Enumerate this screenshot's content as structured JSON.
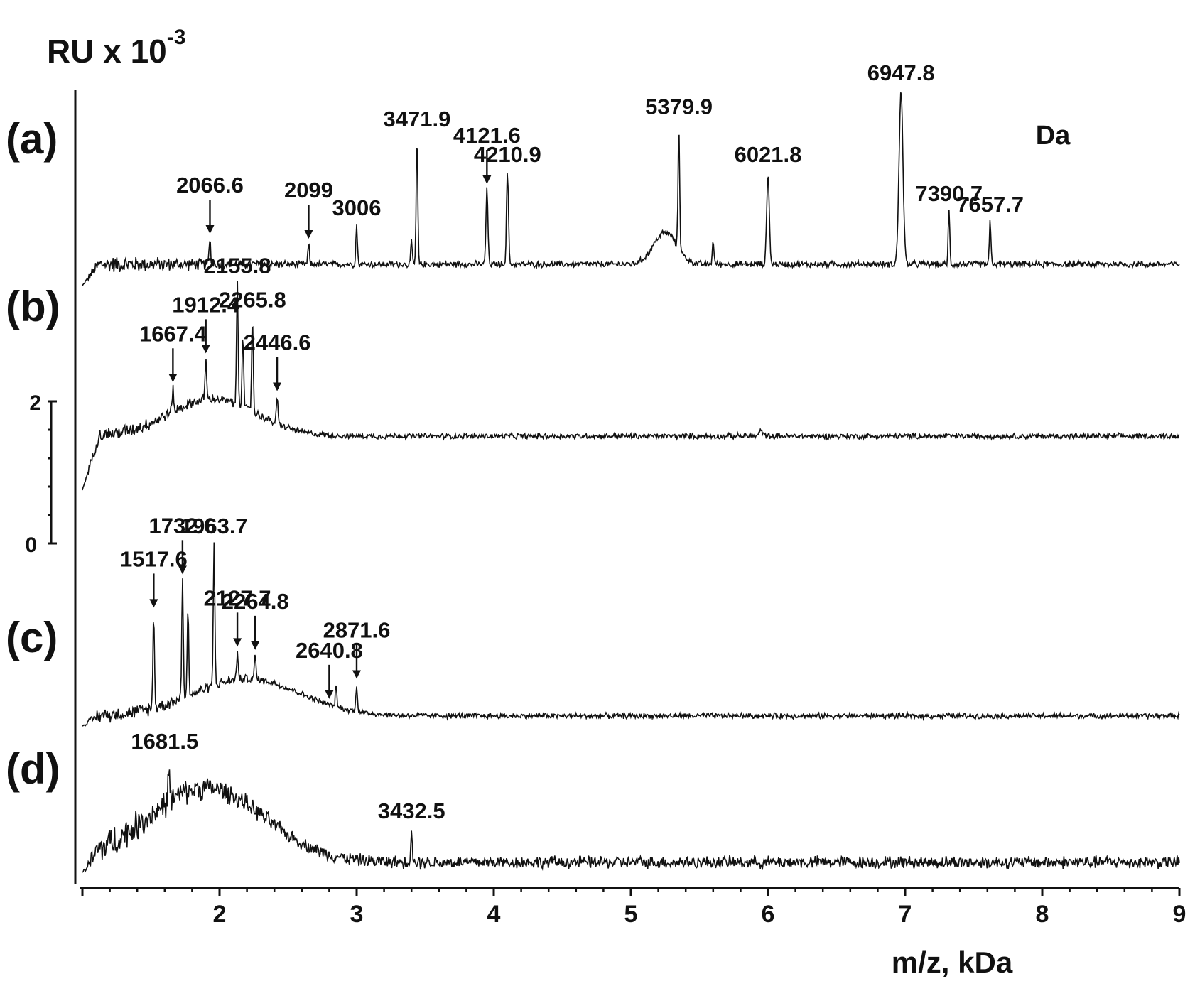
{
  "chart_data": {
    "type": "line",
    "y_unit_label": {
      "base": "RU x 10",
      "exponent": "-3"
    },
    "xlabel": "m/z, kDa",
    "xlim": [
      1.0,
      9.0
    ],
    "x_ticks": [
      "2",
      "3",
      "4",
      "5",
      "6",
      "7",
      "8",
      "9"
    ],
    "y_scale_ticks": [
      "0",
      "2"
    ],
    "unit_note": "Da",
    "series": [
      {
        "name": "(a)",
        "baseline": 0.3,
        "noise": 0.22,
        "humps": [
          {
            "x": 5.25,
            "h": 0.45,
            "w": 0.12
          }
        ],
        "peaks": [
          {
            "x": 1.93,
            "h": 0.35,
            "w": 0.008
          },
          {
            "x": 2.65,
            "h": 0.28,
            "w": 0.008
          },
          {
            "x": 3.0,
            "h": 0.55,
            "w": 0.008
          },
          {
            "x": 3.4,
            "h": 0.3,
            "w": 0.008
          },
          {
            "x": 3.44,
            "h": 1.8,
            "w": 0.008
          },
          {
            "x": 3.95,
            "h": 1.05,
            "w": 0.01
          },
          {
            "x": 4.1,
            "h": 1.3,
            "w": 0.01
          },
          {
            "x": 5.35,
            "h": 1.75,
            "w": 0.008
          },
          {
            "x": 5.6,
            "h": 0.35,
            "w": 0.008
          },
          {
            "x": 6.0,
            "h": 1.3,
            "w": 0.013
          },
          {
            "x": 6.97,
            "h": 2.45,
            "w": 0.02
          },
          {
            "x": 7.32,
            "h": 0.75,
            "w": 0.008
          },
          {
            "x": 7.62,
            "h": 0.6,
            "w": 0.008
          }
        ],
        "annotations": [
          {
            "text": "2066.6",
            "x": 1.93,
            "arrow": true
          },
          {
            "text": "2099",
            "x": 2.65,
            "arrow": true
          },
          {
            "text": "3006",
            "x": 3.0,
            "arrow": false
          },
          {
            "text": "3471.9",
            "x": 3.44,
            "arrow": false
          },
          {
            "text": "4121.6",
            "x": 3.95,
            "arrow": true
          },
          {
            "text": "4210.9",
            "x": 4.1,
            "arrow": false
          },
          {
            "text": "5379.9",
            "x": 5.35,
            "arrow": false
          },
          {
            "text": "6021.8",
            "x": 6.0,
            "arrow": false
          },
          {
            "text": "6947.8",
            "x": 6.97,
            "arrow": false
          },
          {
            "text": "7390.7",
            "x": 7.32,
            "arrow": false
          },
          {
            "text": "7657.7",
            "x": 7.62,
            "arrow": false
          }
        ]
      },
      {
        "name": "(b)",
        "baseline": 0.8,
        "noise": 0.2,
        "humps": [
          {
            "x": 1.95,
            "h": 0.55,
            "w": 0.45
          }
        ],
        "peaks": [
          {
            "x": 1.66,
            "h": 0.35,
            "w": 0.008
          },
          {
            "x": 1.9,
            "h": 0.6,
            "w": 0.008
          },
          {
            "x": 2.13,
            "h": 1.8,
            "w": 0.008
          },
          {
            "x": 2.17,
            "h": 1.1,
            "w": 0.008
          },
          {
            "x": 2.24,
            "h": 1.4,
            "w": 0.008
          },
          {
            "x": 2.42,
            "h": 0.4,
            "w": 0.008
          },
          {
            "x": 5.95,
            "h": 0.08,
            "w": 0.02
          }
        ],
        "annotations": [
          {
            "text": "1667.4",
            "x": 1.66,
            "arrow": true
          },
          {
            "text": "1912.4",
            "x": 1.9,
            "arrow": true
          },
          {
            "text": "2155.8",
            "x": 2.13,
            "arrow": false
          },
          {
            "text": "2265.8",
            "x": 2.24,
            "arrow": false
          },
          {
            "text": "2446.6",
            "x": 2.42,
            "arrow": true
          }
        ]
      },
      {
        "name": "(c)",
        "baseline": 0.15,
        "noise": 0.2,
        "humps": [
          {
            "x": 2.2,
            "h": 0.55,
            "w": 0.55
          }
        ],
        "peaks": [
          {
            "x": 1.52,
            "h": 1.4,
            "w": 0.008
          },
          {
            "x": 1.73,
            "h": 1.75,
            "w": 0.008
          },
          {
            "x": 1.77,
            "h": 1.25,
            "w": 0.008
          },
          {
            "x": 1.96,
            "h": 2.1,
            "w": 0.008
          },
          {
            "x": 2.13,
            "h": 0.4,
            "w": 0.008
          },
          {
            "x": 2.26,
            "h": 0.35,
            "w": 0.008
          },
          {
            "x": 2.85,
            "h": 0.3,
            "w": 0.008
          },
          {
            "x": 3.0,
            "h": 0.4,
            "w": 0.008
          }
        ],
        "annotations": [
          {
            "text": "1517.6",
            "x": 1.52,
            "arrow": true
          },
          {
            "text": "1732.6",
            "x": 1.73,
            "arrow": true
          },
          {
            "text": "1963.7",
            "x": 1.96,
            "arrow": false
          },
          {
            "text": "2127.7",
            "x": 2.13,
            "arrow": true
          },
          {
            "text": "2264.8",
            "x": 2.26,
            "arrow": true
          },
          {
            "text": "2640.8",
            "x": 2.8,
            "arrow": true
          },
          {
            "text": "2871.6",
            "x": 3.0,
            "arrow": true
          },
          {
            "text": "1681.5",
            "x": 1.6,
            "arrow": false
          }
        ]
      },
      {
        "name": "(d)",
        "baseline": 0.15,
        "noise": 0.45,
        "humps": [
          {
            "x": 1.9,
            "h": 1.1,
            "w": 0.6
          }
        ],
        "peaks": [
          {
            "x": 1.63,
            "h": 0.5,
            "w": 0.008
          },
          {
            "x": 3.4,
            "h": 0.5,
            "w": 0.008
          }
        ],
        "annotations": [
          {
            "text": "3432.5",
            "x": 3.4,
            "arrow": false
          }
        ]
      }
    ]
  }
}
